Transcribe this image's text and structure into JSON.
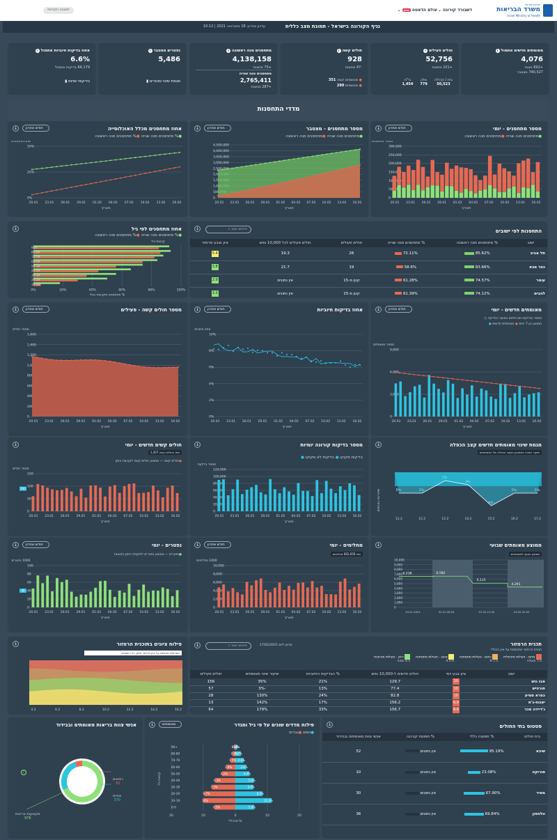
{
  "colors": {
    "red": "#e56a54",
    "green": "#8fe07a",
    "blue": "#2ec4e0",
    "bg": "#384a59",
    "card": "#2f404f",
    "yellow": "#f5ef6e"
  },
  "header": {
    "ministry_hebrew": "משרד הבריאות",
    "ministry_english": "Israel Ministry of Health",
    "ministry_tiny": "מדינת ישראל",
    "nav_dashboard": "דשבורד קורונה",
    "nav_world": "עולם הדאטה",
    "nav_new": "חדש",
    "btn_legacy": "לתצוגה הקודמת",
    "subtitle": "נגיף הקורונה בישראל - תמונת מצב כללית",
    "updated": "עדכון אחרון: 18 בפברואר 2021 | 10:12"
  },
  "kpi": [
    {
      "title": "מאומתים חדשים אתמול",
      "value": "4,076",
      "l1": "+692 חצות",
      "l2": "740,527 מצטבר"
    },
    {
      "title": "חולים פעילים",
      "value": "52,756",
      "l1": "+101 מחצות",
      "a": "בית / קהילה",
      "b": "מלון",
      "c": "בי\"ח",
      "av": "50,523",
      "bv": "779",
      "cv": "1,454"
    },
    {
      "title": "חולים קשה",
      "value": "928",
      "l1": "-47 מחצות",
      "a": "מונשמים קשה",
      "av": "351",
      "b": "מונשמים",
      "bv": "290"
    },
    {
      "title": "מתחסנים מנה ראשונה",
      "value": "4,138,158",
      "l1": "+75 מחצות",
      "t2": "מתחסנים מנה שנייה",
      "v2": "2,765,411",
      "l2": "+287 מחצות"
    },
    {
      "title": "נפטרים מצטבר",
      "value": "5,486",
      "link": "מגמת שינוי נפטרים"
    },
    {
      "title": "אחוז בדיקות חיוביות אתמול",
      "value": "6.6%",
      "l1": "64,179 בדיקות אתמול",
      "link": "בדיקות יומיות"
    }
  ],
  "section_title": "מדדי התחסנות",
  "dd": "חודש אחרון",
  "dd2": "מאומתים",
  "legend_first": "% מתחסנים מנה ראשונה",
  "legend_second": "% מתחסנים מנה שנייה",
  "legend_first_n": "מתחסנים מנה ראשונה",
  "legend_second_n": "מתחסנים מנה שנייה",
  "dates": [
    "20.01",
    "23.01",
    "26.01",
    "29.01",
    "01.02",
    "04.02",
    "07.02",
    "10.02",
    "13.02",
    "16.02"
  ],
  "xlabel": "תאריך",
  "c1": {
    "title": "מספר מתחסנים - יומי",
    "ylabel": "מספר מתחסנים",
    "yt": [
      "0",
      "50,000",
      "100,000",
      "150,000",
      "200,000",
      "250,000",
      "300,000"
    ]
  },
  "c2": {
    "title": "מספר מתחסנים - מצטבר",
    "ylabel": "1000 מתחסנים",
    "yt": [
      "0",
      "500,000",
      "1,000,000",
      "1,500,000",
      "2,000,000",
      "2,500,000",
      "3,000,000",
      "3,500,000",
      "4,000,000",
      "4,500,000"
    ]
  },
  "c3": {
    "title": "אחוז מתחסנים מכלל האוכלוסייה",
    "ylabel": "אחוז מתחסנים",
    "yt": [
      "0%",
      "25%",
      "50%"
    ]
  },
  "age_vax": {
    "title": "אחוז מתחסנים לפי גיל",
    "ylabel": "קבוצת גיל",
    "xlabel": "% מתחסנים מקבוצת הגיל",
    "groups": [
      "+90",
      "80-89",
      "70-79",
      "60-69",
      "50-59",
      "40-49",
      "30-39",
      "20-29",
      "10-19"
    ],
    "first": [
      92,
      93,
      88,
      84,
      74,
      66,
      56,
      50,
      18
    ],
    "second": [
      85,
      86,
      82,
      74,
      56,
      44,
      36,
      30,
      5
    ],
    "xt": [
      "0%",
      "20%",
      "40%",
      "60%",
      "80%",
      "100%"
    ]
  },
  "cities": {
    "title": "התחסנות לפי ישובים",
    "search": "חיפוש ישוב",
    "cols": [
      "ישוב",
      "% מתחסנים מנה ראשונה",
      "% מתחסנים מנה שנייה",
      "חולים פעילים",
      "חולים פעילים לכל 10,000 נפש",
      "ציון וצבע מרמזר"
    ],
    "rows": [
      [
        "תל אביב",
        "85.62%",
        "72.11%",
        "26",
        "19.3",
        "5.4"
      ],
      [
        "כפר סבא",
        "83.66%",
        "58.6%",
        "19",
        "21.7",
        "3.8"
      ],
      [
        "עומר",
        "74.57%",
        "61.28%",
        "קטן מ-15",
        "אין נתונים",
        "2.9"
      ],
      [
        "להבים",
        "74.12%",
        "61.39%",
        "קטן מ-15",
        "אין נתונים",
        "3.3"
      ],
      [
        "שוהם",
        "72.18%",
        "50.79%",
        "60",
        "28.5",
        "4.4"
      ]
    ]
  },
  "c4": {
    "title": "מאומתים חדשים - יומי",
    "l1": "מספר נבדקים ויום חיפוש במועד הבדיקה",
    "l2": "מאומתים חדשים",
    "l3": "ממוצע נע 7 ימים",
    "ylabel": "מספר מאומתים",
    "yt": [
      "0",
      "3,000",
      "6,000",
      "9,000"
    ]
  },
  "c5": {
    "title": "אחוז בדיקות חיוביות",
    "ylabel": "אחוז חיוביות",
    "yt": [
      "0%",
      "2%",
      "4%",
      "6%",
      "8%",
      "10%"
    ]
  },
  "c6": {
    "title": "מספר חולים קשה - פעילים",
    "ylabel": "מספר חולים",
    "yt": [
      "0",
      "200",
      "400",
      "600",
      "800",
      "1,000",
      "1,200",
      "1,400",
      "1,600"
    ]
  },
  "c7": {
    "title": "מגמת שינוי מאומתים חדשים קצב הכפלה",
    "ylabel": "שינוי יומי באחוזים",
    "note": "שיעור השינוי הממוצע בקצב הכפלה של המאומתים",
    "pts": [
      [
        "-5%",
        "11.2"
      ],
      [
        "-5%",
        "12.2"
      ],
      [
        "-2%",
        "13.2"
      ],
      [
        "-3%",
        "14.2"
      ],
      [
        "-8%",
        "15.2"
      ],
      [
        "-5%",
        "16.2"
      ],
      [
        "-5%",
        "17.2"
      ]
    ]
  },
  "c8": {
    "title": "מספר בדיקות קורונה יומיות",
    "l1": "בדיקות לא מקוקו",
    "l2": "בדיקות מקוקו",
    "ylabel": "מספר בדיקות",
    "yt": [
      "0",
      "20,000",
      "40,000",
      "60,000",
      "80,000",
      "100,000",
      "120,000"
    ]
  },
  "c9": {
    "title": "חולים קשים חדשים - יומי",
    "note": "שיא החולים קשה 1,207",
    "l1": "חולים קשה",
    "l2": "ממוצע חולים קשה לקבוצת הזמן",
    "ylabel": "מספר חולים",
    "yt": [
      "0",
      "50",
      "100",
      "150"
    ],
    "mark": "100"
  },
  "c10": {
    "title": "נפטרים - יומי",
    "l1": "נפטרים",
    "l2": "ממוצע נפטרים לתקופת הזמן המוצגת",
    "ylabel": "1000 נפטרים",
    "yt": [
      "0",
      "20",
      "40",
      "60",
      "80",
      "100"
    ],
    "mark": "40"
  },
  "c11": {
    "title": "מחלימים - יומי",
    "note": "שיא 682,658 מחלימים",
    "ylabel": "1000 מחלימים",
    "yt": [
      "0",
      "2,000",
      "4,000",
      "6,000",
      "8,000",
      "10,000"
    ]
  },
  "c12": {
    "title": "ממוצע מאומתים שבועי",
    "note": "ממוצע שבועי למאומתים",
    "ylabel": "1000 מאומתים",
    "yt": [
      "0",
      "1,000",
      "2,000",
      "3,000",
      "4,000",
      "5,000",
      "6,000",
      "7,000",
      "8,000",
      "9,000",
      "10,000"
    ],
    "vals": [
      "6,538",
      "6,582",
      "5,115",
      "4,291"
    ],
    "xt": [
      "24.01.2021",
      "31.01-06.02",
      "07.02-13.02",
      "14.02-20.02"
    ]
  },
  "c13": {
    "title": "פילוח ציונים בתוכנית הרמזור",
    "note": "התרשים מתבסס על ציון מרמזר מתוך כל הישובים",
    "ylabel": "מספר ישובים",
    "xt": [
      "4.2",
      "6.2",
      "8.2",
      "10.2",
      "12.2",
      "14.2",
      "16.2"
    ]
  },
  "traffic": {
    "title": "תכנית הרמזור",
    "note": "תכנית הרמזור מתבססת על ציון הכולל",
    "search": "חיפוש ישוב",
    "date": "עדכון ליום 17/02/2021",
    "leg": [
      [
        "אדום - פעילות מינימלית",
        "7.5 ומעלה"
      ],
      [
        "כתום - פעילות מתמתנת",
        "6-7.5"
      ],
      [
        "צהוב - פעילות מתמתנת",
        "4.5-6"
      ],
      [
        "ירוק - פעילות מורחבת",
        "4.5 ומטה"
      ]
    ],
    "cols": [
      "ישוב",
      "ציון צבע יומי",
      "חולים חדשים ל-10,000 נפש",
      "% הבדיקות החיוביות",
      "שיעור שינוי מאומתים",
      "חולים פעילים"
    ],
    "rows": [
      [
        "אבו גוש",
        "10",
        "129.7",
        "21%",
        "35%",
        "156"
      ],
      [
        "חורפיש",
        "10",
        "77.4",
        "13%",
        "-3%",
        "57"
      ],
      [
        "כסרא סמיע",
        "10",
        "82.8",
        "24%",
        "130%",
        "28"
      ],
      [
        "יאנוח-ג'ת",
        "9.9",
        "156.2",
        "17%",
        "142%",
        "13"
      ],
      [
        "ג'דיידה מכר",
        "9.6",
        "156.7",
        "33%",
        "179%",
        "64"
      ],
      [
        "כעביה טבאש חג'אג'רה",
        "9.2",
        "43.8",
        "20%",
        "61%",
        "23"
      ]
    ]
  },
  "hospitals": {
    "title": "סטטוס בתי החולים",
    "cols": [
      "בית חולים",
      "% תפוסה כללי",
      "% תפוסת קורונה",
      "אנשי צוות מאומתים ובבידוד"
    ],
    "rows": [
      [
        "שיבא",
        "95.19%",
        "אין נתונים",
        "52"
      ],
      [
        "סורוקה",
        "23.08%",
        "אין נתונים",
        "10"
      ],
      [
        "מאיר",
        "67.90%",
        "אין נתונים",
        "30"
      ],
      [
        "וולפסון",
        "69.84%",
        "אין נתונים",
        "36"
      ]
    ]
  },
  "age_dist": {
    "title": "פילוח מדדים שונים על פי גיל ומגדר",
    "l1": "גברים",
    "l2": "נשים",
    "ylabel": "קבוצת גיל",
    "xlabel": "% מהכלל",
    "groups": [
      "+90",
      "80-89",
      "70-79",
      "60-69",
      "50-59",
      "40-49",
      "30-39",
      "20-29",
      "10-19",
      "0-9"
    ],
    "men": [
      0.4,
      0.9,
      1.5,
      2.8,
      4.2,
      6.3,
      7.3,
      9.7,
      10,
      6.5
    ],
    "women": [
      0.6,
      1.7,
      2.6,
      3.4,
      4.4,
      5.8,
      5.6,
      8.5,
      11.3,
      5.9
    ],
    "men_lbl": [
      "0.4%",
      "0.9%",
      "1.5%",
      "2.8%",
      "4.2%",
      "6.3%",
      "7.3%",
      "9.7%",
      "10%",
      "6.5%"
    ],
    "women_lbl": [
      "0.6%",
      "1.7%",
      "2.6%",
      "3.4%",
      "4.4%",
      "5.8%",
      "5.6%",
      "8.5%",
      "11.3%",
      "5.9%"
    ],
    "xt": [
      "20",
      "10",
      "0",
      "10",
      "20"
    ]
  },
  "staff": {
    "title": "אנשי צוות בריאות מאומתים ובבידוד",
    "total": "1,428",
    "a": "רופאים",
    "av": "82",
    "b": "אחיות",
    "bv": "370",
    "c": "מקצועות בריאות",
    "cv": "976"
  },
  "chart_data": [
    {
      "type": "bar",
      "title": "מספר מתחסנים - יומי",
      "series": [
        {
          "name": "מתחסנים מנה ראשונה"
        },
        {
          "name": "מתחסנים מנה שנייה"
        }
      ]
    },
    {
      "type": "area",
      "title": "מספר מתחסנים - מצטבר",
      "series": [
        {
          "name": "מתחסנים מנה ראשונה",
          "start": 2300000,
          "end": 4138158
        },
        {
          "name": "מתחסנים מנה שנייה",
          "start": 200000,
          "end": 2765411
        }
      ]
    },
    {
      "type": "line",
      "title": "אחוז מתחסנים מכלל האוכלוסייה",
      "series": [
        {
          "name": "% מתחסנים מנה ראשונה",
          "start": 27,
          "end": 44
        },
        {
          "name": "% מתחסנים מנה שנייה",
          "start": 3,
          "end": 30
        }
      ]
    }
  ]
}
